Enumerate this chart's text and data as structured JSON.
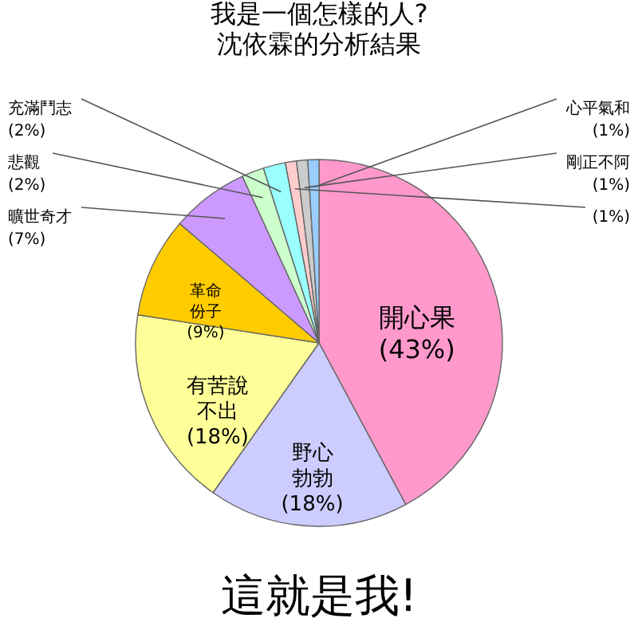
{
  "chart_data": {
    "type": "pie",
    "title": "我是一個怎樣的人?",
    "subtitle": "沈依霖的分析結果",
    "categories": [
      "開心果",
      "野心勃勃",
      "有苦說不出",
      "革命份子",
      "曠世奇才",
      "悲觀",
      "充滿鬥志",
      null,
      "剛正不阿",
      "心平氣和"
    ],
    "values": [
      43,
      18,
      18,
      9,
      7,
      2,
      2,
      1,
      1,
      1
    ],
    "colors": [
      "#ff99cc",
      "#ccccff",
      "#ffff99",
      "#ffcc00",
      "#cc99ff",
      "#ccffcc",
      "#99ffff",
      "#ffcccc",
      "#cccccc",
      "#99ccff"
    ],
    "value_labels": [
      "(43%)",
      "(18%)",
      "(18%)",
      "(9%)",
      "(7%)",
      "(2%)",
      "(2%)",
      "(1%)",
      "(1%)",
      "(1%)"
    ],
    "annotations": [
      "這就是我!"
    ]
  }
}
